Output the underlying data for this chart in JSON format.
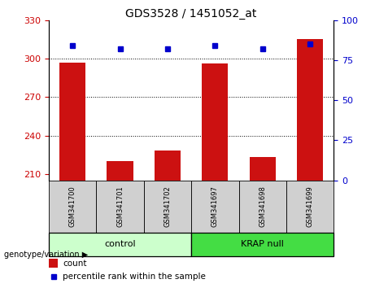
{
  "title": "GDS3528 / 1451052_at",
  "samples": [
    "GSM341700",
    "GSM341701",
    "GSM341702",
    "GSM341697",
    "GSM341698",
    "GSM341699"
  ],
  "groups": [
    "control",
    "control",
    "control",
    "KRAP null",
    "KRAP null",
    "KRAP null"
  ],
  "group_labels": [
    "control",
    "KRAP null"
  ],
  "counts": [
    297,
    220,
    228,
    296,
    223,
    315
  ],
  "percentile_ranks": [
    84,
    82,
    82,
    84,
    82,
    85
  ],
  "ylim_left": [
    205,
    330
  ],
  "ylim_right": [
    0,
    100
  ],
  "yticks_left": [
    210,
    240,
    270,
    300,
    330
  ],
  "yticks_right": [
    0,
    25,
    50,
    75,
    100
  ],
  "bar_color": "#cc1111",
  "dot_color": "#0000cc",
  "bg_color": "#ffffff",
  "group_colors": {
    "control": "#ccffcc",
    "KRAP null": "#44dd44"
  },
  "sample_box_color": "#d0d0d0",
  "tick_color_left": "#cc0000",
  "tick_color_right": "#0000cc",
  "label_fontsize": 8,
  "title_fontsize": 10,
  "gridline_ticks": [
    300,
    270,
    240
  ]
}
